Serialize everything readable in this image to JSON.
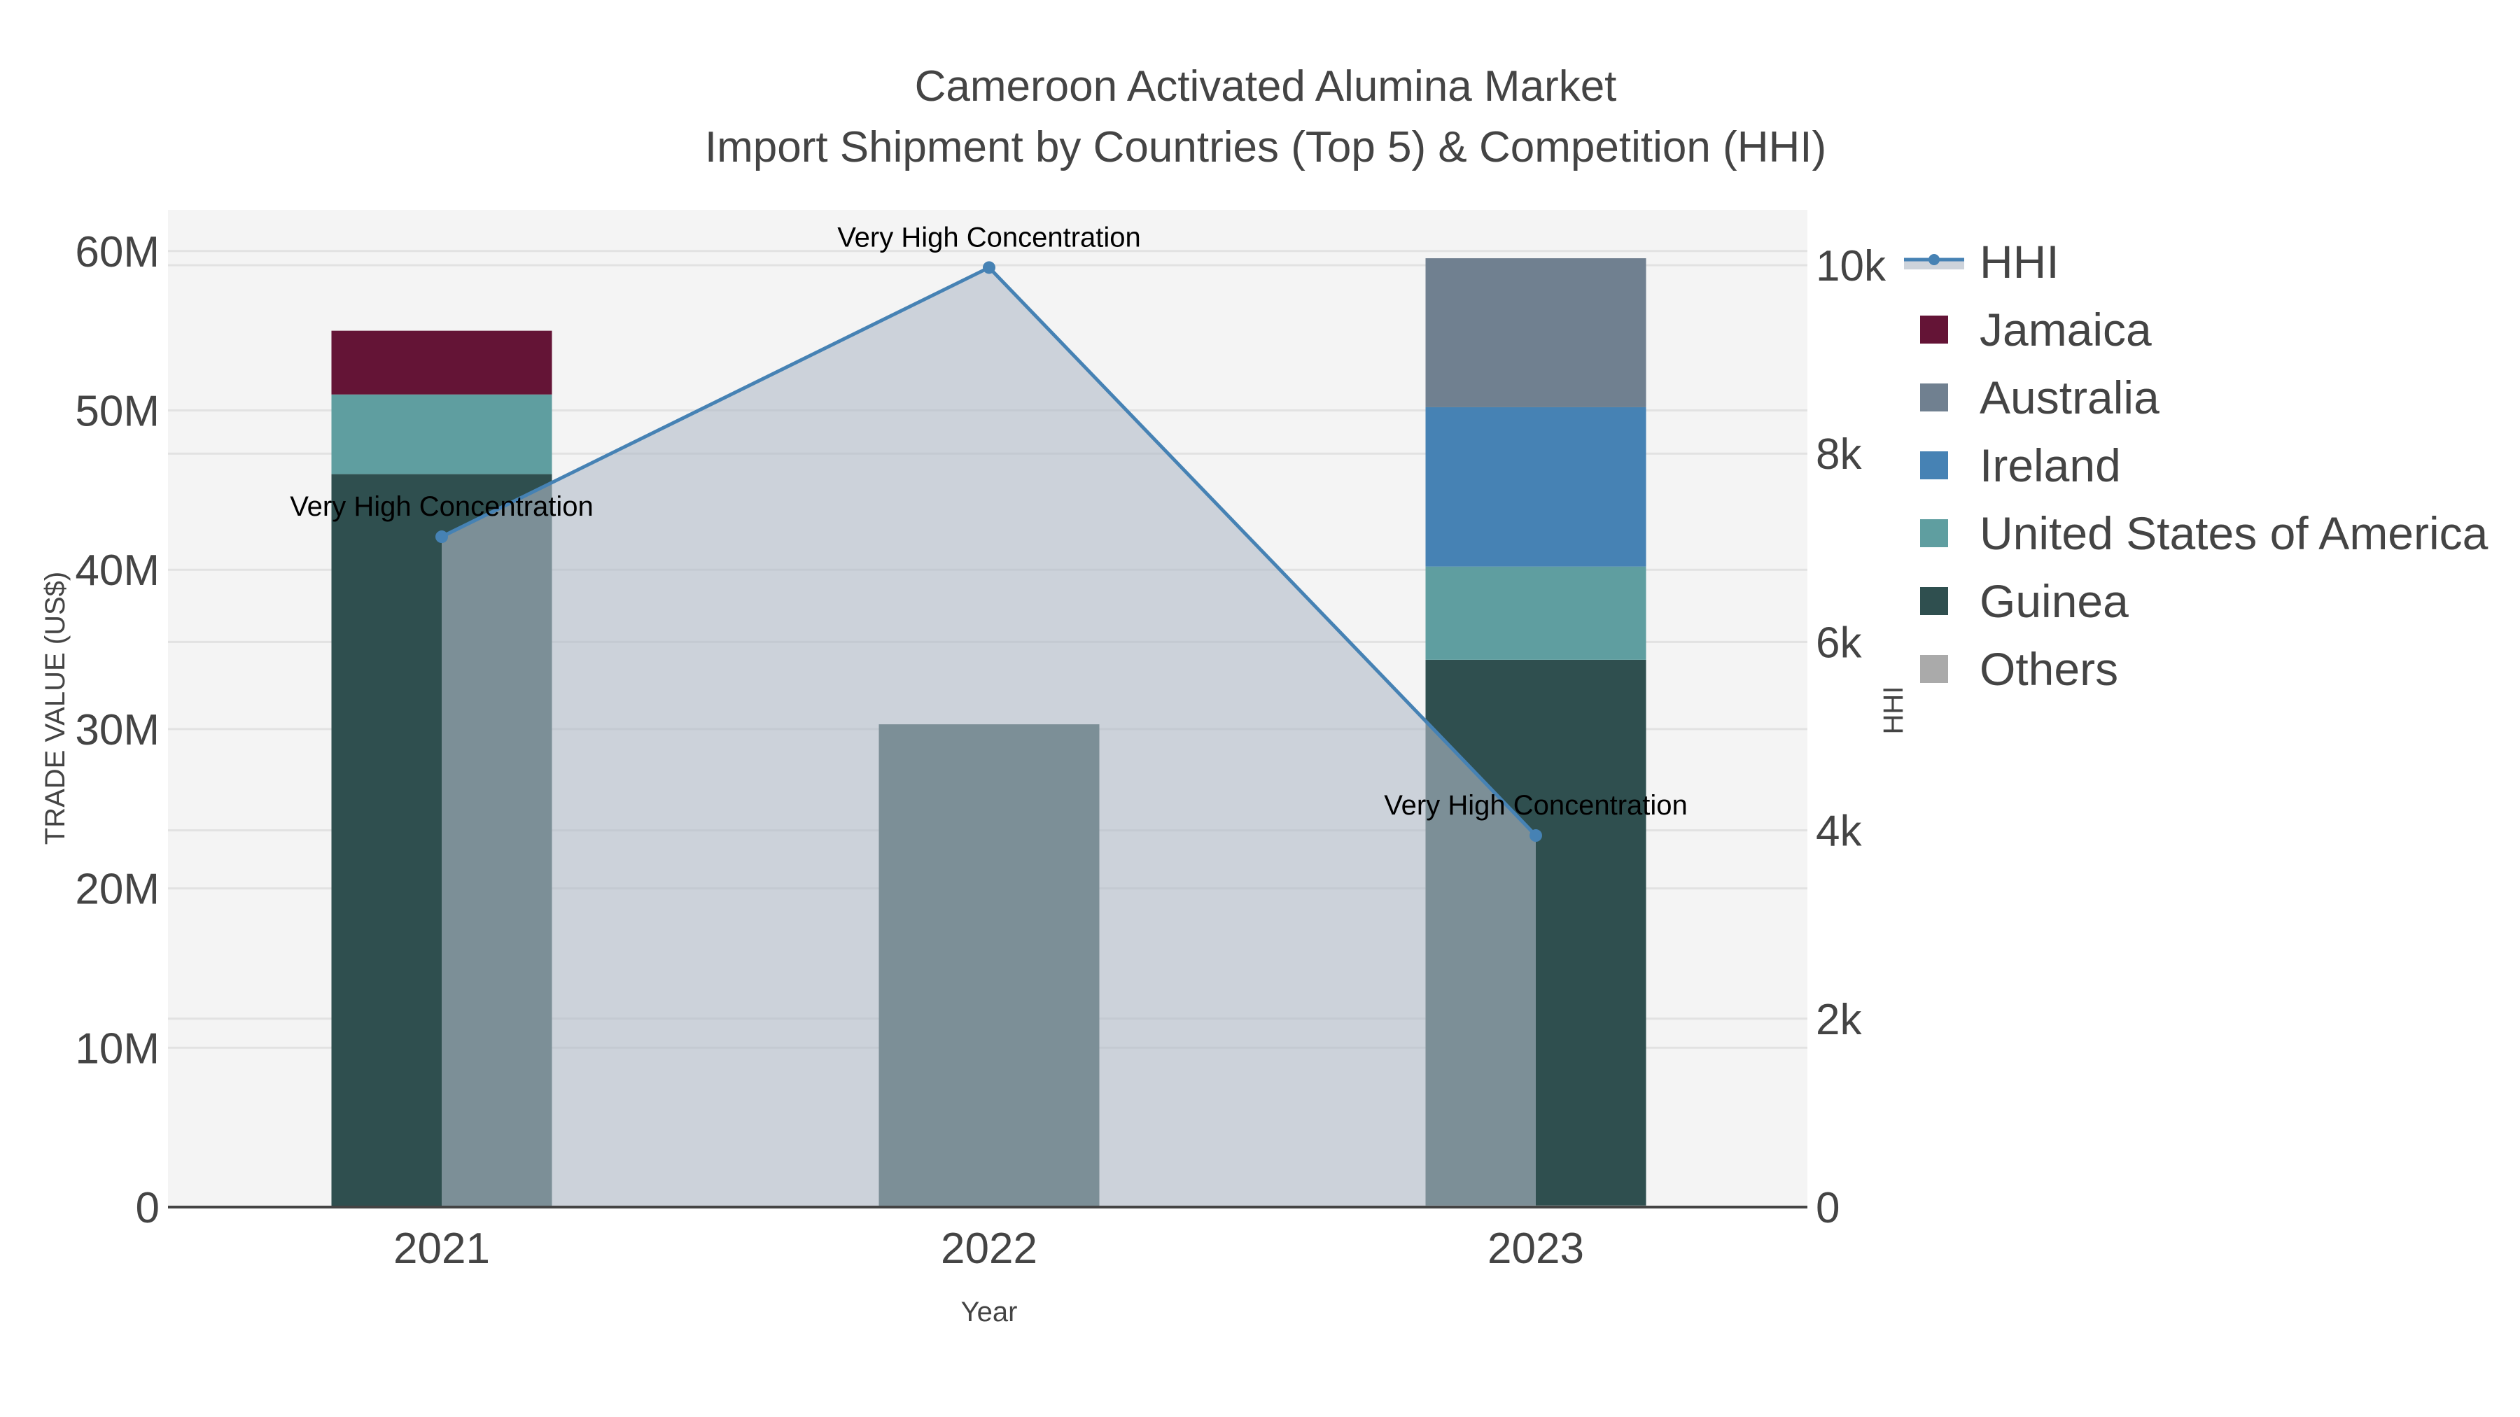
{
  "title": {
    "line1": "Cameroon Activated Alumina Market",
    "line2": "Import Shipment by Countries (Top 5) & Competition (HHI)"
  },
  "axes": {
    "x_title": "Year",
    "y_left_title": "TRADE VALUE (US$)",
    "y_right_title": "HHI",
    "y_left_ticks": [
      "0",
      "10M",
      "20M",
      "30M",
      "40M",
      "50M",
      "60M"
    ],
    "y_right_ticks": [
      "0",
      "2k",
      "4k",
      "6k",
      "8k",
      "10k"
    ],
    "x_ticks": [
      "2021",
      "2022",
      "2023"
    ]
  },
  "annotations": [
    "Very High Concentration",
    "Very High Concentration",
    "Very High Concentration"
  ],
  "legend": [
    {
      "label": "HHI",
      "color": "#4682b4",
      "kind": "line"
    },
    {
      "label": "Jamaica",
      "color": "#641436",
      "kind": "bar"
    },
    {
      "label": "Australia",
      "color": "#708090",
      "kind": "bar"
    },
    {
      "label": "Ireland",
      "color": "#4682b4",
      "kind": "bar"
    },
    {
      "label": "United States of America",
      "color": "#5f9ea0",
      "kind": "bar"
    },
    {
      "label": "Guinea",
      "color": "#2f4f4f",
      "kind": "bar"
    },
    {
      "label": "Others",
      "color": "#aaaaaa",
      "kind": "bar"
    }
  ],
  "chart_data": {
    "type": "bar",
    "stacked": true,
    "title": "Cameroon Activated Alumina Market — Import Shipment by Countries (Top 5) & Competition (HHI)",
    "xlabel": "Year",
    "ylabel": "TRADE VALUE (US$)",
    "y2label": "HHI",
    "categories": [
      "2021",
      "2022",
      "2023"
    ],
    "ylim": [
      0,
      62500000
    ],
    "y2lim": [
      0,
      10400
    ],
    "series": [
      {
        "name": "Others",
        "color": "#aaaaaa",
        "values": [
          0,
          0,
          100000
        ]
      },
      {
        "name": "Guinea",
        "color": "#2f4f4f",
        "values": [
          46000000,
          30300000,
          34250000
        ]
      },
      {
        "name": "United States of America",
        "color": "#5f9ea0",
        "values": [
          5000000,
          0,
          5850000
        ]
      },
      {
        "name": "Ireland",
        "color": "#4682b4",
        "values": [
          0,
          0,
          10000000
        ]
      },
      {
        "name": "Australia",
        "color": "#708090",
        "values": [
          0,
          0,
          9350000
        ]
      },
      {
        "name": "Jamaica",
        "color": "#641436",
        "values": [
          4000000,
          0,
          0
        ]
      }
    ],
    "line_series": {
      "name": "HHI",
      "axis": "right",
      "color": "#4682b4",
      "fill": "tozeroy",
      "values": [
        7117,
        9975,
        3945
      ],
      "labels": [
        "Very High Concentration",
        "Very High Concentration",
        "Very High Concentration"
      ]
    },
    "grid": true,
    "legend_position": "right"
  }
}
